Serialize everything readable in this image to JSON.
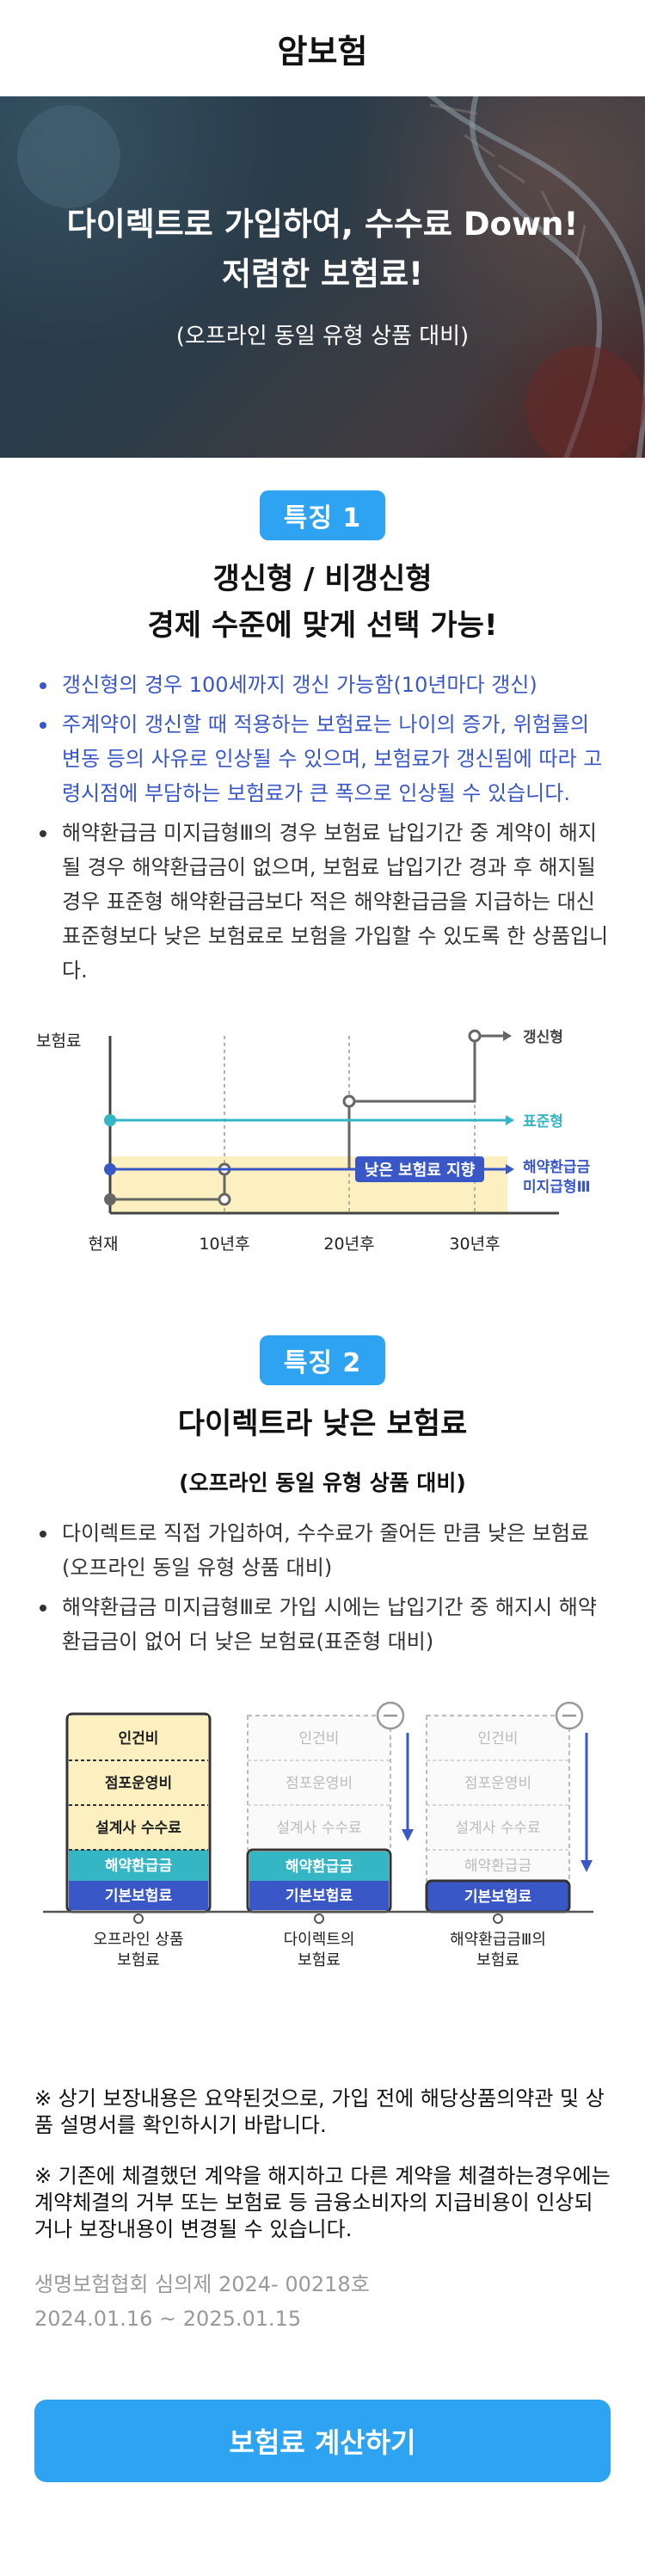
{
  "header": {
    "title": "암보험"
  },
  "hero": {
    "line1": "다이렉트로 가입하여, 수수료 Down!",
    "line2": "저렴한 보험료!",
    "sub": "(오프라인 동일 유형 상품 대비)"
  },
  "feature1": {
    "badge": "특징 1",
    "title_line1": "갱신형 / 비갱신형",
    "title_line2": "경제 수준에 맞게 선택 가능!",
    "bullets": [
      "갱신형의 경우 100세까지 갱신 가능함(10년마다 갱신)",
      "주계약이 갱신할 때 적용하는 보험료는 나이의 증가, 위험률의 변동 등의 사유로 인상될 수 있으며, 보험료가 갱신됨에 따라 고령시점에 부담하는 보험료가 큰 폭으로 인상될 수 있습니다.",
      "해약환급금 미지급형Ⅲ의 경우 보험료 납입기간 중 계약이 해지될 경우 해약환급금이 없으며, 보험료 납입기간 경과 후 해지될 경우 표준형 해약환급금보다 적은 해약환급금을 지급하는 대신 표준형보다 낮은 보험료로 보험을 가입할 수 있도록 한 상품입니다."
    ],
    "chart": {
      "ylabel": "보험료",
      "xticks": [
        "현재",
        "10년후",
        "20년후",
        "30년후"
      ],
      "series": [
        "갱신형",
        "표준형",
        "해약환급금",
        "미지급형Ⅲ"
      ],
      "callout": "낮은 보험료 지향"
    }
  },
  "feature2": {
    "badge": "특징 2",
    "title": "다이렉트라 낮은 보험료",
    "sub": "(오프라인 동일 유형 상품 대비)",
    "bullets": [
      "다이렉트로 직접 가입하여, 수수료가 줄어든 만큼 낮은 보험료(오프라인 동일 유형 상품 대비)",
      "해약환급금 미지급형Ⅲ로 가입 시에는 납입기간 중 해지시 해약환급금이 없어 더 낮은 보험료(표준형 대비)"
    ],
    "chart": {
      "blocks": [
        "인건비",
        "점포운영비",
        "설계사 수수료",
        "해약환급금",
        "기본보험료"
      ],
      "col1_label1": "오프라인 상품",
      "col1_label2": "보험료",
      "col2_label1": "다이렉트의",
      "col2_label2": "보험료",
      "col3_label1": "해약환급금Ⅲ의",
      "col3_label2": "보험료"
    }
  },
  "notes": {
    "note1": "※ 상기 보장내용은 요약된것으로, 가입 전에 해당상품의약관 및 상품 설명서를 확인하시기 바랍니다.",
    "note2": "※ 기존에 체결했던 계약을 해지하고 다른 계약을 체결하는경우에는 계약체결의 거부 또는 보험료 등 금융소비자의 지급비용이 인상되거나 보장내용이 변경될 수 있습니다.",
    "review_no": "생명보험협회 심의제 2024- 00218호",
    "review_period": "2024.01.16 ~ 2025.01.15"
  },
  "cta": {
    "label": "보험료 계산하기"
  },
  "colors": {
    "accent": "#2ea3f2",
    "blue_text": "#3a57c8",
    "teal": "#35b6c4",
    "navy": "#3a57c8",
    "yellow": "#fdf0c0"
  }
}
